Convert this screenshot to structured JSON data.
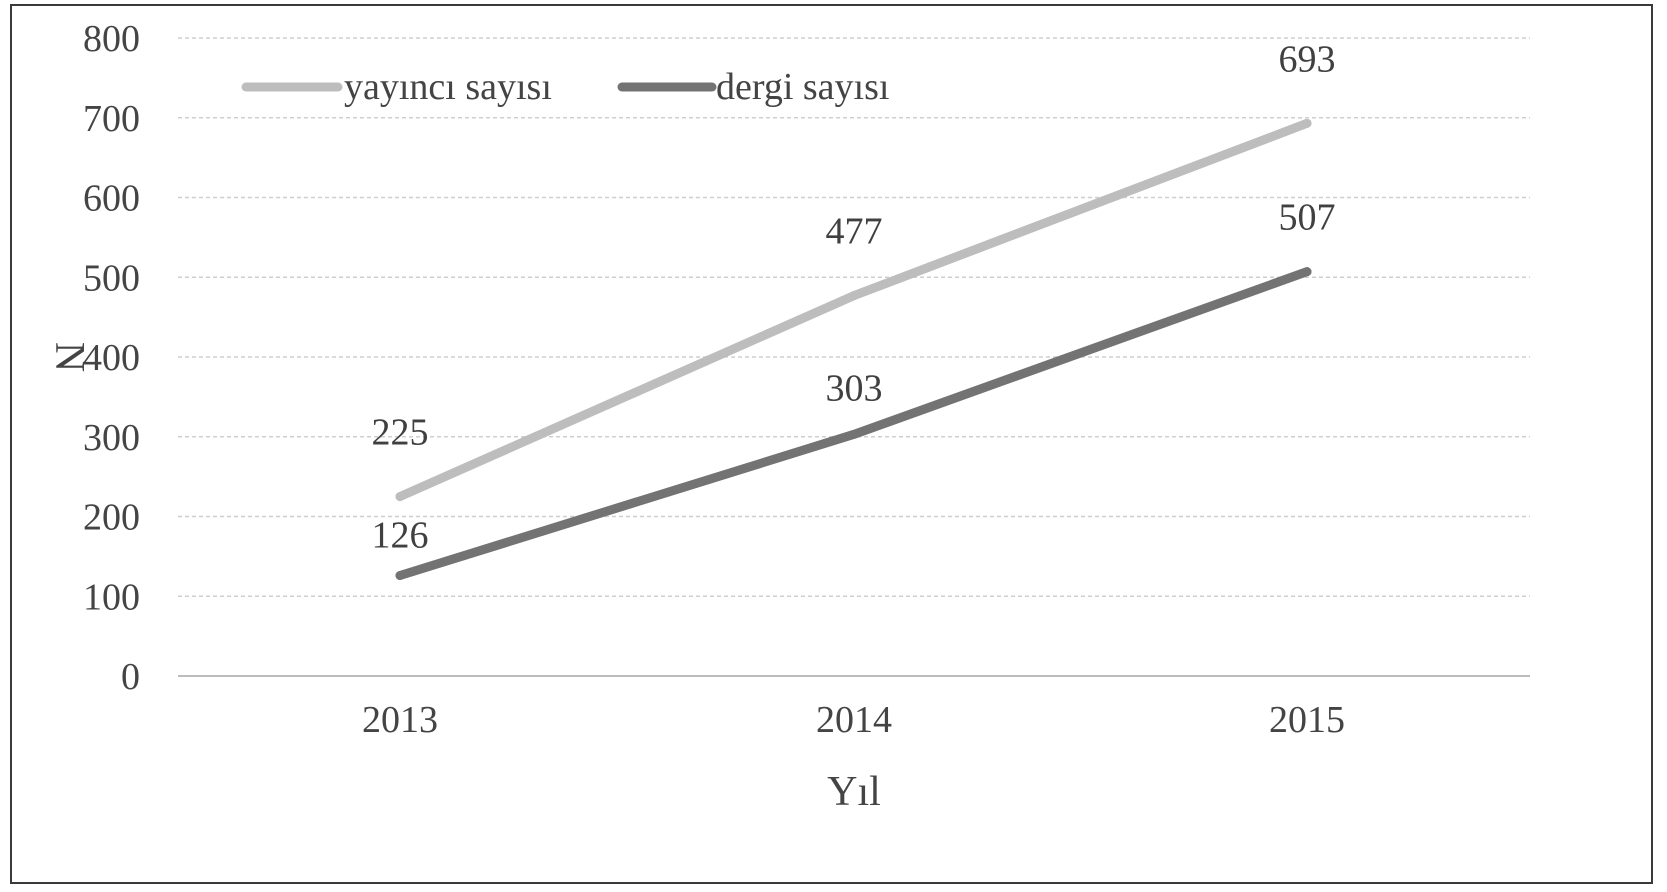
{
  "chart_data": {
    "type": "line",
    "categories": [
      "2013",
      "2014",
      "2015"
    ],
    "series": [
      {
        "name": "yayıncı sayısı",
        "values": [
          225,
          477,
          693
        ],
        "color": "#bdbdbd"
      },
      {
        "name": "dergi sayısı",
        "values": [
          126,
          303,
          507
        ],
        "color": "#737373"
      }
    ],
    "xlabel": "Yıl",
    "ylabel": "N",
    "ylim": [
      0,
      800
    ],
    "yticks": [
      0,
      100,
      200,
      300,
      400,
      500,
      600,
      700,
      800
    ],
    "grid": true,
    "legend_position": "top-left",
    "data_labels": true
  }
}
